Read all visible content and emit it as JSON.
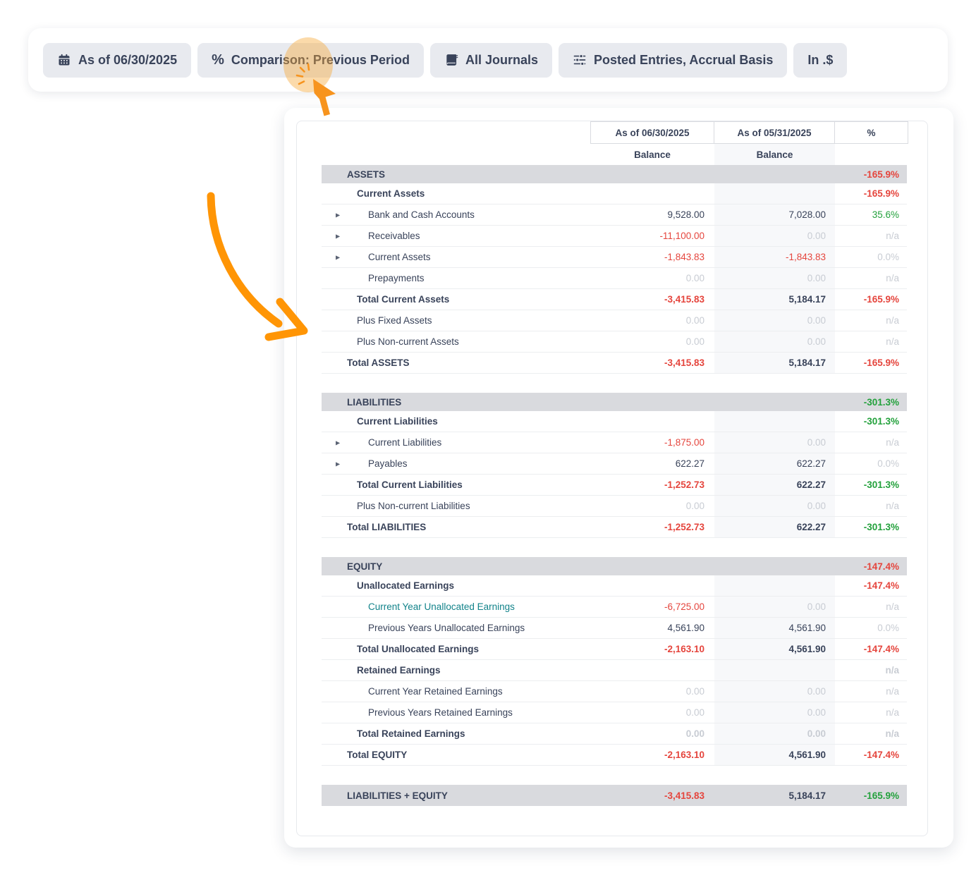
{
  "toolbar": {
    "buttons": [
      {
        "label": "As of 06/30/2025",
        "icon": "calendar-icon"
      },
      {
        "label": "Comparison: Previous Period",
        "icon": "percent-icon"
      },
      {
        "label": "All Journals",
        "icon": "journal-book-icon"
      },
      {
        "label": "Posted Entries, Accrual Basis",
        "icon": "sliders-icon"
      },
      {
        "label": "In .$",
        "icon": ""
      }
    ],
    "percent_glyph": "%"
  },
  "colors": {
    "accent_orange": "#ff9505",
    "highlight_orange": "#f6a635",
    "negative_red": "#e5453d",
    "positive_green": "#23a13c",
    "muted_gray": "#c8ccd3",
    "link_teal": "#12838a",
    "section_bar": "#d9dade"
  },
  "table": {
    "caret_glyph": "▶",
    "columns": [
      {
        "title": "As of 06/30/2025",
        "subtitle": "Balance"
      },
      {
        "title": "As of 05/31/2025",
        "subtitle": "Balance"
      },
      {
        "title": "%",
        "subtitle": ""
      }
    ],
    "rows": [
      {
        "type": "section",
        "label": "ASSETS",
        "lvl": 0,
        "v1": "",
        "v2": "",
        "pct": "-165.9%",
        "cp": "red"
      },
      {
        "type": "row",
        "bold": true,
        "lvl": 1,
        "label": "Current Assets",
        "v1": "",
        "v2": "",
        "pct": "-165.9%",
        "cp": "red"
      },
      {
        "type": "row",
        "lvl": 2,
        "caret": true,
        "label": "Bank and Cash Accounts",
        "v1": "9,528.00",
        "c1": "dark",
        "v2": "7,028.00",
        "c2": "dark",
        "pct": "35.6%",
        "cp": "green"
      },
      {
        "type": "row",
        "lvl": 2,
        "caret": true,
        "label": "Receivables",
        "v1": "-11,100.00",
        "c1": "red",
        "v2": "0.00",
        "c2": "muted",
        "pct": "n/a",
        "cp": "muted"
      },
      {
        "type": "row",
        "lvl": 2,
        "caret": true,
        "label": "Current Assets",
        "v1": "-1,843.83",
        "c1": "red",
        "v2": "-1,843.83",
        "c2": "red",
        "pct": "0.0%",
        "cp": "muted"
      },
      {
        "type": "row",
        "lvl": 2,
        "label": "Prepayments",
        "v1": "0.00",
        "c1": "muted",
        "v2": "0.00",
        "c2": "muted",
        "pct": "n/a",
        "cp": "muted"
      },
      {
        "type": "row",
        "bold": true,
        "lvl": 1,
        "label": "Total Current Assets",
        "v1": "-3,415.83",
        "c1": "red",
        "v2": "5,184.17",
        "c2": "dark",
        "pct": "-165.9%",
        "cp": "red"
      },
      {
        "type": "row",
        "lvl": 1,
        "label": "Plus Fixed Assets",
        "v1": "0.00",
        "c1": "muted",
        "v2": "0.00",
        "c2": "muted",
        "pct": "n/a",
        "cp": "muted"
      },
      {
        "type": "row",
        "lvl": 1,
        "label": "Plus Non-current Assets",
        "v1": "0.00",
        "c1": "muted",
        "v2": "0.00",
        "c2": "muted",
        "pct": "n/a",
        "cp": "muted"
      },
      {
        "type": "row",
        "bold": true,
        "lvl": 0,
        "label": "Total ASSETS",
        "v1": "-3,415.83",
        "c1": "red",
        "v2": "5,184.17",
        "c2": "dark",
        "pct": "-165.9%",
        "cp": "red"
      },
      {
        "type": "gap"
      },
      {
        "type": "section",
        "label": "LIABILITIES",
        "lvl": 0,
        "v1": "",
        "v2": "",
        "pct": "-301.3%",
        "cp": "green"
      },
      {
        "type": "row",
        "bold": true,
        "lvl": 1,
        "label": "Current Liabilities",
        "v1": "",
        "v2": "",
        "pct": "-301.3%",
        "cp": "green"
      },
      {
        "type": "row",
        "lvl": 2,
        "caret": true,
        "label": "Current Liabilities",
        "v1": "-1,875.00",
        "c1": "red",
        "v2": "0.00",
        "c2": "muted",
        "pct": "n/a",
        "cp": "muted"
      },
      {
        "type": "row",
        "lvl": 2,
        "caret": true,
        "label": "Payables",
        "v1": "622.27",
        "c1": "dark",
        "v2": "622.27",
        "c2": "dark",
        "pct": "0.0%",
        "cp": "muted"
      },
      {
        "type": "row",
        "bold": true,
        "lvl": 1,
        "label": "Total Current Liabilities",
        "v1": "-1,252.73",
        "c1": "red",
        "v2": "622.27",
        "c2": "dark",
        "pct": "-301.3%",
        "cp": "green"
      },
      {
        "type": "row",
        "lvl": 1,
        "label": "Plus Non-current Liabilities",
        "v1": "0.00",
        "c1": "muted",
        "v2": "0.00",
        "c2": "muted",
        "pct": "n/a",
        "cp": "muted"
      },
      {
        "type": "row",
        "bold": true,
        "lvl": 0,
        "label": "Total LIABILITIES",
        "v1": "-1,252.73",
        "c1": "red",
        "v2": "622.27",
        "c2": "dark",
        "pct": "-301.3%",
        "cp": "green"
      },
      {
        "type": "gap"
      },
      {
        "type": "section",
        "label": "EQUITY",
        "lvl": 0,
        "v1": "",
        "v2": "",
        "pct": "-147.4%",
        "cp": "red"
      },
      {
        "type": "row",
        "bold": true,
        "lvl": 1,
        "label": "Unallocated Earnings",
        "v1": "",
        "v2": "",
        "pct": "-147.4%",
        "cp": "red"
      },
      {
        "type": "row",
        "lvl": 2,
        "link": true,
        "label": "Current Year Unallocated Earnings",
        "v1": "-6,725.00",
        "c1": "red",
        "v2": "0.00",
        "c2": "muted",
        "pct": "n/a",
        "cp": "muted"
      },
      {
        "type": "row",
        "lvl": 2,
        "label": "Previous Years Unallocated Earnings",
        "v1": "4,561.90",
        "c1": "dark",
        "v2": "4,561.90",
        "c2": "dark",
        "pct": "0.0%",
        "cp": "muted"
      },
      {
        "type": "row",
        "bold": true,
        "lvl": 1,
        "label": "Total Unallocated Earnings",
        "v1": "-2,163.10",
        "c1": "red",
        "v2": "4,561.90",
        "c2": "dark",
        "pct": "-147.4%",
        "cp": "red"
      },
      {
        "type": "row",
        "bold": true,
        "lvl": 1,
        "label": "Retained Earnings",
        "v1": "",
        "v2": "",
        "pct": "n/a",
        "cp": "muted"
      },
      {
        "type": "row",
        "lvl": 2,
        "label": "Current Year Retained Earnings",
        "v1": "0.00",
        "c1": "muted",
        "v2": "0.00",
        "c2": "muted",
        "pct": "n/a",
        "cp": "muted"
      },
      {
        "type": "row",
        "lvl": 2,
        "label": "Previous Years Retained Earnings",
        "v1": "0.00",
        "c1": "muted",
        "v2": "0.00",
        "c2": "muted",
        "pct": "n/a",
        "cp": "muted"
      },
      {
        "type": "row",
        "bold": true,
        "lvl": 1,
        "label": "Total Retained Earnings",
        "v1": "0.00",
        "c1": "muted",
        "v2": "0.00",
        "c2": "muted",
        "pct": "n/a",
        "cp": "muted"
      },
      {
        "type": "row",
        "bold": true,
        "lvl": 0,
        "label": "Total EQUITY",
        "v1": "-2,163.10",
        "c1": "red",
        "v2": "4,561.90",
        "c2": "dark",
        "pct": "-147.4%",
        "cp": "red"
      },
      {
        "type": "gap"
      },
      {
        "type": "section",
        "tall": true,
        "label": "LIABILITIES + EQUITY",
        "lvl": 0,
        "v1": "-3,415.83",
        "c1": "red",
        "v2": "5,184.17",
        "c2": "dark",
        "pct": "-165.9%",
        "cp": "green"
      }
    ]
  }
}
